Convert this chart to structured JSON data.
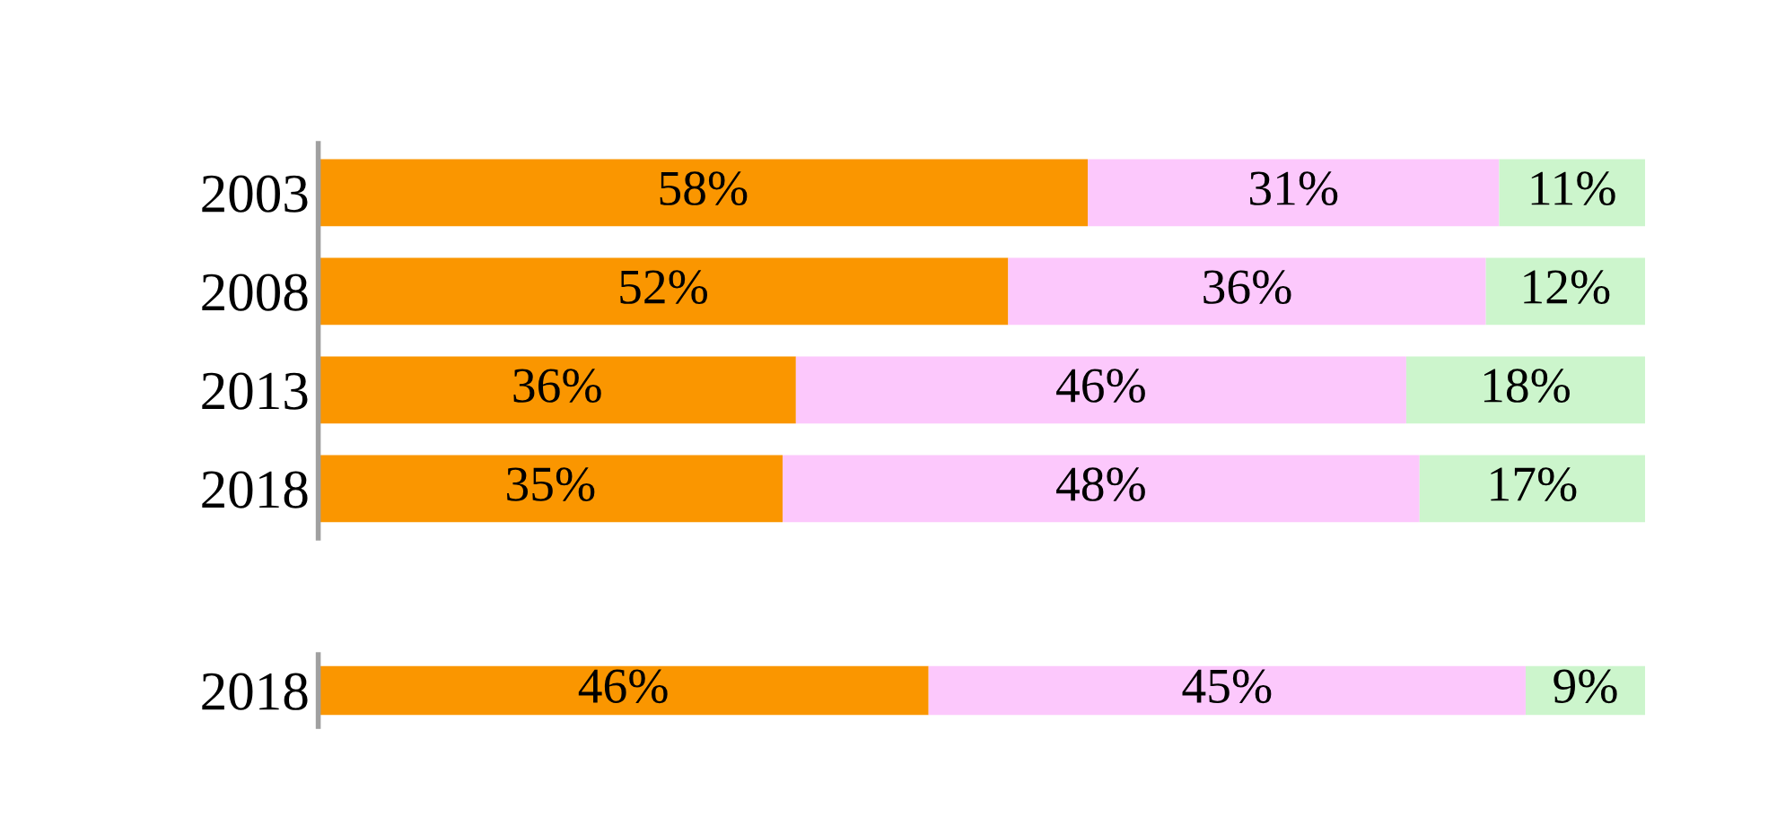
{
  "chart_data": [
    {
      "type": "bar",
      "orientation": "horizontal",
      "stacked": true,
      "categories": [
        "2003",
        "2008",
        "2013",
        "2018"
      ],
      "series": [
        {
          "color": "#fa9600",
          "values": [
            58,
            52,
            36,
            35
          ],
          "value_labels": [
            "58%",
            "52%",
            "36%",
            "35%"
          ]
        },
        {
          "color": "#fcc8fc",
          "values": [
            31,
            36,
            46,
            48
          ],
          "value_labels": [
            "31%",
            "36%",
            "46%",
            "48%"
          ]
        },
        {
          "color": "#ccf5cc",
          "values": [
            11,
            12,
            18,
            17
          ],
          "value_labels": [
            "11%",
            "12%",
            "18%",
            "17%"
          ]
        }
      ],
      "legend": false,
      "grid": false,
      "tick_labels": "y"
    },
    {
      "type": "bar",
      "orientation": "horizontal",
      "stacked": true,
      "categories": [
        "2018"
      ],
      "series": [
        {
          "color": "#fa9600",
          "values": [
            46
          ],
          "value_labels": [
            "46%"
          ]
        },
        {
          "color": "#fcc8fc",
          "values": [
            45
          ],
          "value_labels": [
            "45%"
          ]
        },
        {
          "color": "#ccf5cc",
          "values": [
            9
          ],
          "value_labels": [
            "9%"
          ]
        }
      ],
      "legend": false,
      "grid": false,
      "tick_labels": "y"
    }
  ]
}
